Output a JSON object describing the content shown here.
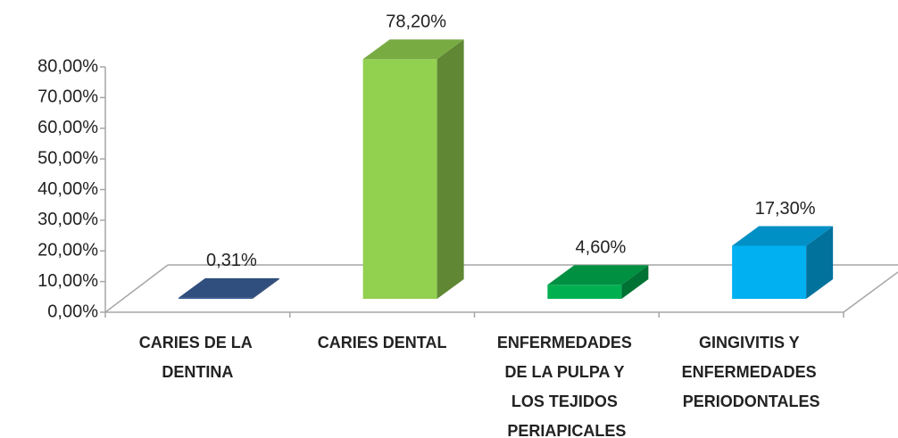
{
  "chart_data": {
    "type": "bar3d",
    "categories": [
      "CARIES DE LA DENTINA",
      "CARIES DENTAL",
      "ENFERMEDADES DE LA PULPA Y LOS TEJIDOS PERIAPICALES",
      "GINGIVITIS Y ENFERMEDADES PERIODONTALES"
    ],
    "values": [
      0.31,
      78.2,
      4.6,
      17.3
    ],
    "value_labels": [
      "0,31%",
      "78,20%",
      "4,60%",
      "17,30%"
    ],
    "colors": [
      "#3a5f9a",
      "#92d050",
      "#00b050",
      "#00b0f0"
    ],
    "ylim": [
      0,
      80
    ],
    "yticks": [
      {
        "value": 0,
        "label": "0,00%"
      },
      {
        "value": 10,
        "label": "10,00%"
      },
      {
        "value": 20,
        "label": "20,00%"
      },
      {
        "value": 30,
        "label": "30,00%"
      },
      {
        "value": 40,
        "label": "40,00%"
      },
      {
        "value": 50,
        "label": "50,00%"
      },
      {
        "value": 60,
        "label": "60,00%"
      },
      {
        "value": 70,
        "label": "70,00%"
      },
      {
        "value": 80,
        "label": "80,00%"
      }
    ]
  }
}
